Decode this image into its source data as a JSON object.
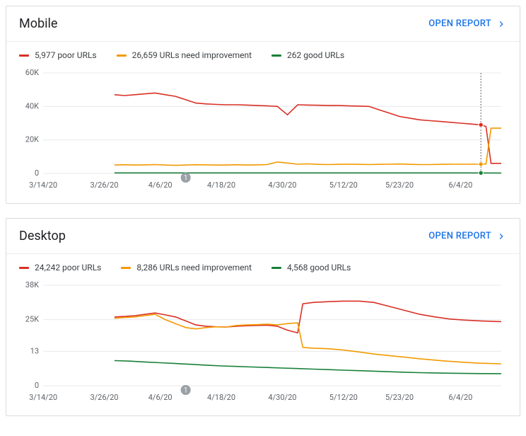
{
  "panels": [
    {
      "id": "mobile",
      "title": "Mobile",
      "open_report_label": "OPEN REPORT",
      "legend": [
        {
          "color": "#d93025",
          "label": "5,977 poor URLs"
        },
        {
          "color": "#f29900",
          "label": "26,659 URLs need improvement"
        },
        {
          "color": "#188038",
          "label": "262 good URLs"
        }
      ],
      "chart": {
        "type": "line",
        "background_color": "#ffffff",
        "grid_color": "#e8eaed",
        "label_fontsize": 11,
        "ylim": [
          0,
          60000
        ],
        "yticks": [
          {
            "v": 0,
            "label": "0"
          },
          {
            "v": 20000,
            "label": "20K"
          },
          {
            "v": 40000,
            "label": "40K"
          },
          {
            "v": 60000,
            "label": "60K"
          }
        ],
        "xlim": [
          0,
          90
        ],
        "xticks": [
          {
            "v": 0,
            "label": "3/14/20"
          },
          {
            "v": 12,
            "label": "3/26/20"
          },
          {
            "v": 23,
            "label": "4/6/20"
          },
          {
            "v": 35,
            "label": "4/18/20"
          },
          {
            "v": 47,
            "label": "4/30/20"
          },
          {
            "v": 59,
            "label": "5/12/20"
          },
          {
            "v": 70,
            "label": "5/23/20"
          },
          {
            "v": 82,
            "label": "6/4/20"
          }
        ],
        "series": [
          {
            "name": "poor",
            "color": "#d93025",
            "points": [
              [
                14,
                47000
              ],
              [
                16,
                46500
              ],
              [
                18,
                47000
              ],
              [
                20,
                47500
              ],
              [
                22,
                48000
              ],
              [
                24,
                47000
              ],
              [
                26,
                46000
              ],
              [
                28,
                44000
              ],
              [
                30,
                42000
              ],
              [
                32,
                41500
              ],
              [
                34,
                41200
              ],
              [
                36,
                41000
              ],
              [
                38,
                41000
              ],
              [
                40,
                40800
              ],
              [
                42,
                40500
              ],
              [
                44,
                40300
              ],
              [
                46,
                40000
              ],
              [
                48,
                35000
              ],
              [
                50,
                41000
              ],
              [
                52,
                40800
              ],
              [
                54,
                40700
              ],
              [
                56,
                40500
              ],
              [
                58,
                40500
              ],
              [
                60,
                40300
              ],
              [
                62,
                40200
              ],
              [
                64,
                40000
              ],
              [
                66,
                38000
              ],
              [
                68,
                36000
              ],
              [
                70,
                34000
              ],
              [
                72,
                33000
              ],
              [
                74,
                32000
              ],
              [
                76,
                31500
              ],
              [
                78,
                31000
              ],
              [
                80,
                30500
              ],
              [
                82,
                30000
              ],
              [
                84,
                29500
              ],
              [
                86,
                29000
              ],
              [
                87,
                28000
              ],
              [
                88,
                6000
              ],
              [
                90,
                6000
              ]
            ]
          },
          {
            "name": "needs-improvement",
            "color": "#f29900",
            "points": [
              [
                14,
                5000
              ],
              [
                16,
                5200
              ],
              [
                18,
                5000
              ],
              [
                20,
                5100
              ],
              [
                22,
                5300
              ],
              [
                24,
                5000
              ],
              [
                26,
                4800
              ],
              [
                28,
                5000
              ],
              [
                30,
                5200
              ],
              [
                32,
                5100
              ],
              [
                34,
                5000
              ],
              [
                36,
                5000
              ],
              [
                38,
                5200
              ],
              [
                40,
                5000
              ],
              [
                42,
                5100
              ],
              [
                44,
                5300
              ],
              [
                46,
                6800
              ],
              [
                48,
                6200
              ],
              [
                50,
                5500
              ],
              [
                52,
                5700
              ],
              [
                54,
                5400
              ],
              [
                56,
                5300
              ],
              [
                58,
                5400
              ],
              [
                60,
                5500
              ],
              [
                62,
                5400
              ],
              [
                64,
                5300
              ],
              [
                66,
                5400
              ],
              [
                68,
                5500
              ],
              [
                70,
                5600
              ],
              [
                72,
                5400
              ],
              [
                74,
                5300
              ],
              [
                76,
                5300
              ],
              [
                78,
                5400
              ],
              [
                80,
                5500
              ],
              [
                82,
                5500
              ],
              [
                84,
                5500
              ],
              [
                86,
                5500
              ],
              [
                87,
                5600
              ],
              [
                88,
                27000
              ],
              [
                90,
                27000
              ]
            ]
          },
          {
            "name": "good",
            "color": "#188038",
            "points": [
              [
                14,
                300
              ],
              [
                20,
                300
              ],
              [
                26,
                300
              ],
              [
                32,
                300
              ],
              [
                38,
                300
              ],
              [
                44,
                300
              ],
              [
                50,
                300
              ],
              [
                56,
                300
              ],
              [
                62,
                300
              ],
              [
                68,
                300
              ],
              [
                74,
                300
              ],
              [
                80,
                300
              ],
              [
                86,
                300
              ],
              [
                88,
                262
              ],
              [
                90,
                262
              ]
            ]
          }
        ],
        "indicator_x": 86,
        "end_markers_x": 86,
        "annotation": {
          "x": 28,
          "label": "1"
        }
      }
    },
    {
      "id": "desktop",
      "title": "Desktop",
      "open_report_label": "OPEN REPORT",
      "legend": [
        {
          "color": "#d93025",
          "label": "24,242 poor URLs"
        },
        {
          "color": "#f29900",
          "label": "8,286 URLs need improvement"
        },
        {
          "color": "#188038",
          "label": "4,568 good URLs"
        }
      ],
      "chart": {
        "type": "line",
        "background_color": "#ffffff",
        "grid_color": "#e8eaed",
        "label_fontsize": 11,
        "ylim": [
          0,
          38000
        ],
        "yticks": [
          {
            "v": 0,
            "label": "0"
          },
          {
            "v": 13000,
            "label": "13"
          },
          {
            "v": 25000,
            "label": "25K"
          },
          {
            "v": 38000,
            "label": "38K"
          }
        ],
        "xlim": [
          0,
          90
        ],
        "xticks": [
          {
            "v": 0,
            "label": "3/14/20"
          },
          {
            "v": 12,
            "label": "3/26/20"
          },
          {
            "v": 23,
            "label": "4/6/20"
          },
          {
            "v": 35,
            "label": "4/18/20"
          },
          {
            "v": 47,
            "label": "4/30/20"
          },
          {
            "v": 59,
            "label": "5/12/20"
          },
          {
            "v": 70,
            "label": "5/23/20"
          },
          {
            "v": 82,
            "label": "6/4/20"
          }
        ],
        "series": [
          {
            "name": "poor",
            "color": "#d93025",
            "points": [
              [
                14,
                26000
              ],
              [
                16,
                26200
              ],
              [
                18,
                26500
              ],
              [
                20,
                27000
              ],
              [
                22,
                27500
              ],
              [
                24,
                26800
              ],
              [
                26,
                26000
              ],
              [
                28,
                24500
              ],
              [
                30,
                23000
              ],
              [
                32,
                22500
              ],
              [
                34,
                22300
              ],
              [
                36,
                22200
              ],
              [
                38,
                22500
              ],
              [
                40,
                22700
              ],
              [
                42,
                22800
              ],
              [
                44,
                22900
              ],
              [
                46,
                22500
              ],
              [
                48,
                21000
              ],
              [
                50,
                20000
              ],
              [
                51,
                31000
              ],
              [
                53,
                31500
              ],
              [
                56,
                31800
              ],
              [
                59,
                32000
              ],
              [
                62,
                32000
              ],
              [
                65,
                31500
              ],
              [
                68,
                30000
              ],
              [
                71,
                28500
              ],
              [
                74,
                27000
              ],
              [
                77,
                26000
              ],
              [
                80,
                25200
              ],
              [
                83,
                24800
              ],
              [
                86,
                24500
              ],
              [
                90,
                24242
              ]
            ]
          },
          {
            "name": "needs-improvement",
            "color": "#f29900",
            "points": [
              [
                14,
                25500
              ],
              [
                16,
                25800
              ],
              [
                18,
                26000
              ],
              [
                20,
                26500
              ],
              [
                22,
                27000
              ],
              [
                24,
                25000
              ],
              [
                26,
                23500
              ],
              [
                28,
                22000
              ],
              [
                30,
                21500
              ],
              [
                32,
                22000
              ],
              [
                34,
                22300
              ],
              [
                36,
                22200
              ],
              [
                38,
                22800
              ],
              [
                40,
                23000
              ],
              [
                42,
                23100
              ],
              [
                44,
                23300
              ],
              [
                46,
                23000
              ],
              [
                48,
                23500
              ],
              [
                50,
                23800
              ],
              [
                51,
                14500
              ],
              [
                53,
                14200
              ],
              [
                56,
                14000
              ],
              [
                59,
                13500
              ],
              [
                62,
                12800
              ],
              [
                65,
                12000
              ],
              [
                68,
                11400
              ],
              [
                71,
                10800
              ],
              [
                74,
                10200
              ],
              [
                77,
                9700
              ],
              [
                80,
                9200
              ],
              [
                83,
                8800
              ],
              [
                86,
                8500
              ],
              [
                90,
                8286
              ]
            ]
          },
          {
            "name": "good",
            "color": "#188038",
            "points": [
              [
                14,
                9500
              ],
              [
                17,
                9300
              ],
              [
                20,
                9000
              ],
              [
                23,
                8700
              ],
              [
                26,
                8400
              ],
              [
                29,
                8100
              ],
              [
                32,
                7800
              ],
              [
                35,
                7500
              ],
              [
                38,
                7300
              ],
              [
                41,
                7100
              ],
              [
                44,
                6900
              ],
              [
                47,
                6700
              ],
              [
                50,
                6500
              ],
              [
                53,
                6300
              ],
              [
                56,
                6100
              ],
              [
                59,
                5900
              ],
              [
                62,
                5700
              ],
              [
                65,
                5500
              ],
              [
                68,
                5300
              ],
              [
                71,
                5100
              ],
              [
                74,
                4950
              ],
              [
                77,
                4850
              ],
              [
                80,
                4750
              ],
              [
                83,
                4650
              ],
              [
                86,
                4600
              ],
              [
                90,
                4568
              ]
            ]
          }
        ],
        "annotation": {
          "x": 28,
          "label": "1"
        }
      }
    }
  ]
}
